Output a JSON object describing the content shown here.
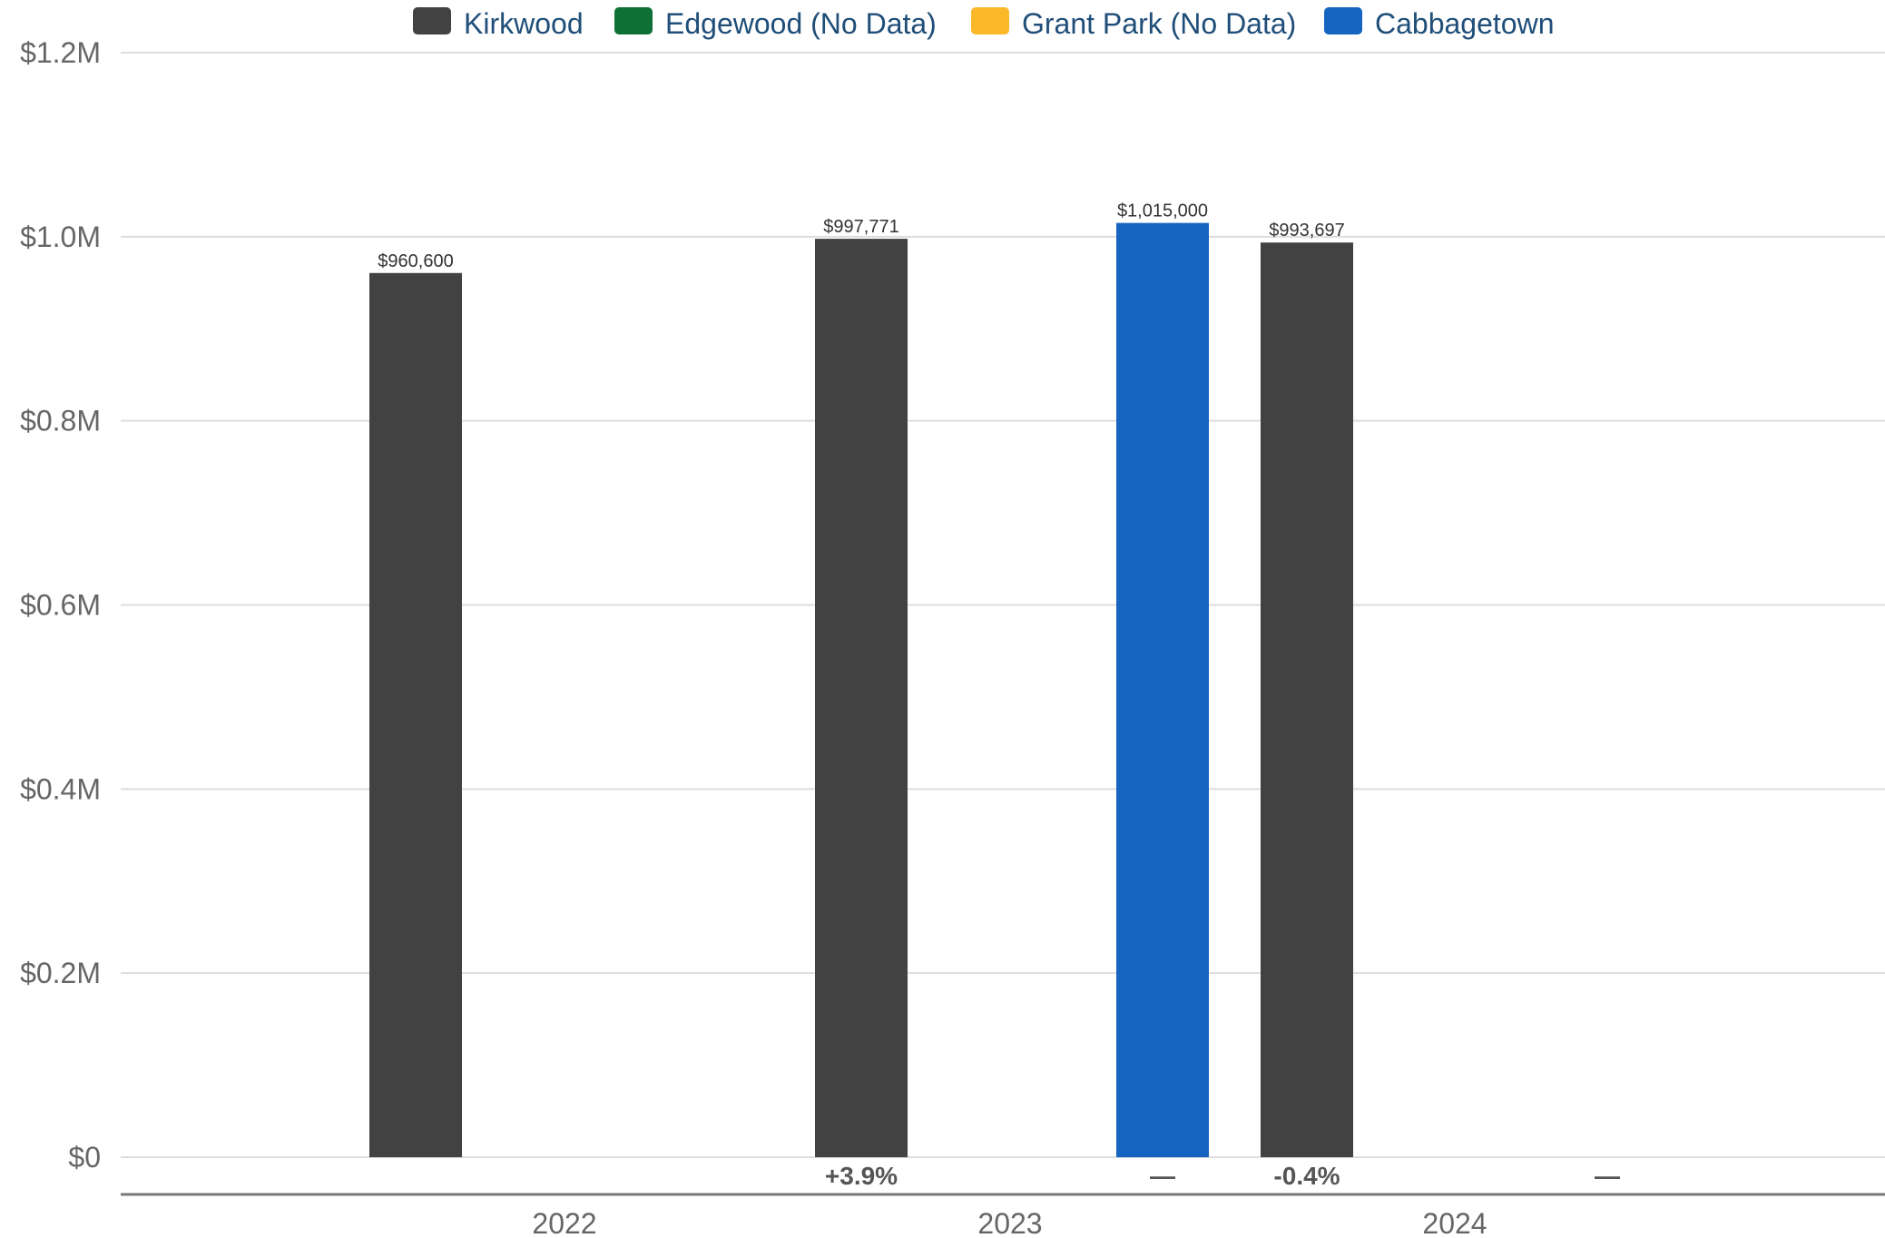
{
  "chart_data": {
    "type": "bar",
    "categories": [
      "2022",
      "2023",
      "2024"
    ],
    "series": [
      {
        "name": "Kirkwood",
        "color": "#424242"
      },
      {
        "name": "Edgewood (No Data)",
        "color": "#0f7036"
      },
      {
        "name": "Grant Park (No Data)",
        "color": "#fbb829"
      },
      {
        "name": "Cabbagetown",
        "color": "#1565c0"
      }
    ],
    "bars": [
      {
        "category": "2022",
        "series": "Kirkwood",
        "value": 960600,
        "label": "$960,600"
      },
      {
        "category": "2023",
        "series": "Kirkwood",
        "value": 997771,
        "label": "$997,771"
      },
      {
        "category": "2023",
        "series": "Cabbagetown",
        "value": 1015000,
        "label": "$1,015,000"
      },
      {
        "category": "2024",
        "series": "Kirkwood",
        "value": 993697,
        "label": "$993,697"
      }
    ],
    "change_labels": [
      {
        "category": "2023",
        "series": "Kirkwood",
        "text": "+3.9%"
      },
      {
        "category": "2023",
        "series": "Cabbagetown",
        "text": "—"
      },
      {
        "category": "2024",
        "series": "Kirkwood",
        "text": "-0.4%"
      },
      {
        "category": "2024",
        "series": "Cabbagetown",
        "text": "—"
      }
    ],
    "y_ticks": [
      {
        "value": 0,
        "label": "$0"
      },
      {
        "value": 200000,
        "label": "$0.2M"
      },
      {
        "value": 400000,
        "label": "$0.4M"
      },
      {
        "value": 600000,
        "label": "$0.6M"
      },
      {
        "value": 800000,
        "label": "$0.8M"
      },
      {
        "value": 1000000,
        "label": "$1.0M"
      },
      {
        "value": 1200000,
        "label": "$1.2M"
      }
    ],
    "ylim": [
      0,
      1200000
    ],
    "grid": true,
    "legend_position": "top",
    "title": "",
    "xlabel": "",
    "ylabel": ""
  }
}
